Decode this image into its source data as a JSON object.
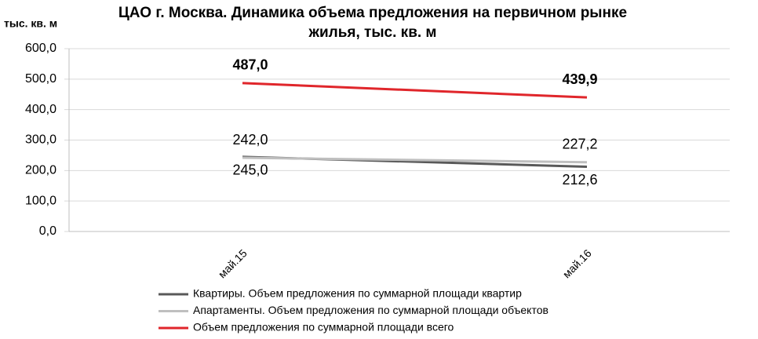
{
  "chart_data": {
    "type": "line",
    "title": [
      "ЦАО г. Москва. Динамика объема предложения на первичном рынке",
      "жилья, тыс. кв. м"
    ],
    "y_label": "тыс. кв. м",
    "categories": [
      "май.15",
      "май.16"
    ],
    "series": [
      {
        "name": "Квартиры. Объем предложения по суммарной площади  квартир",
        "color": "#595959",
        "values": [
          245.0,
          212.6
        ],
        "value_labels": [
          "245,0",
          "212,6"
        ]
      },
      {
        "name": "Апартаменты. Объем предложения по суммарной площади  объектов",
        "color": "#bfbfbf",
        "values": [
          242.0,
          227.2
        ],
        "value_labels": [
          "242,0",
          "227,2"
        ]
      },
      {
        "name": "Объем предложения по суммарной площади  всего",
        "color": "#e0262b",
        "values": [
          487.0,
          439.9
        ],
        "value_labels": [
          "487,0",
          "439,9"
        ]
      }
    ],
    "ylim": [
      0,
      600
    ],
    "yticks": [
      {
        "value": 0,
        "label": "0,0"
      },
      {
        "value": 100,
        "label": "100,0"
      },
      {
        "value": 200,
        "label": "200,0"
      },
      {
        "value": 300,
        "label": "300,0"
      },
      {
        "value": 400,
        "label": "400,0"
      },
      {
        "value": 500,
        "label": "500,0"
      },
      {
        "value": 600,
        "label": "600,0"
      }
    ],
    "grid": true
  }
}
